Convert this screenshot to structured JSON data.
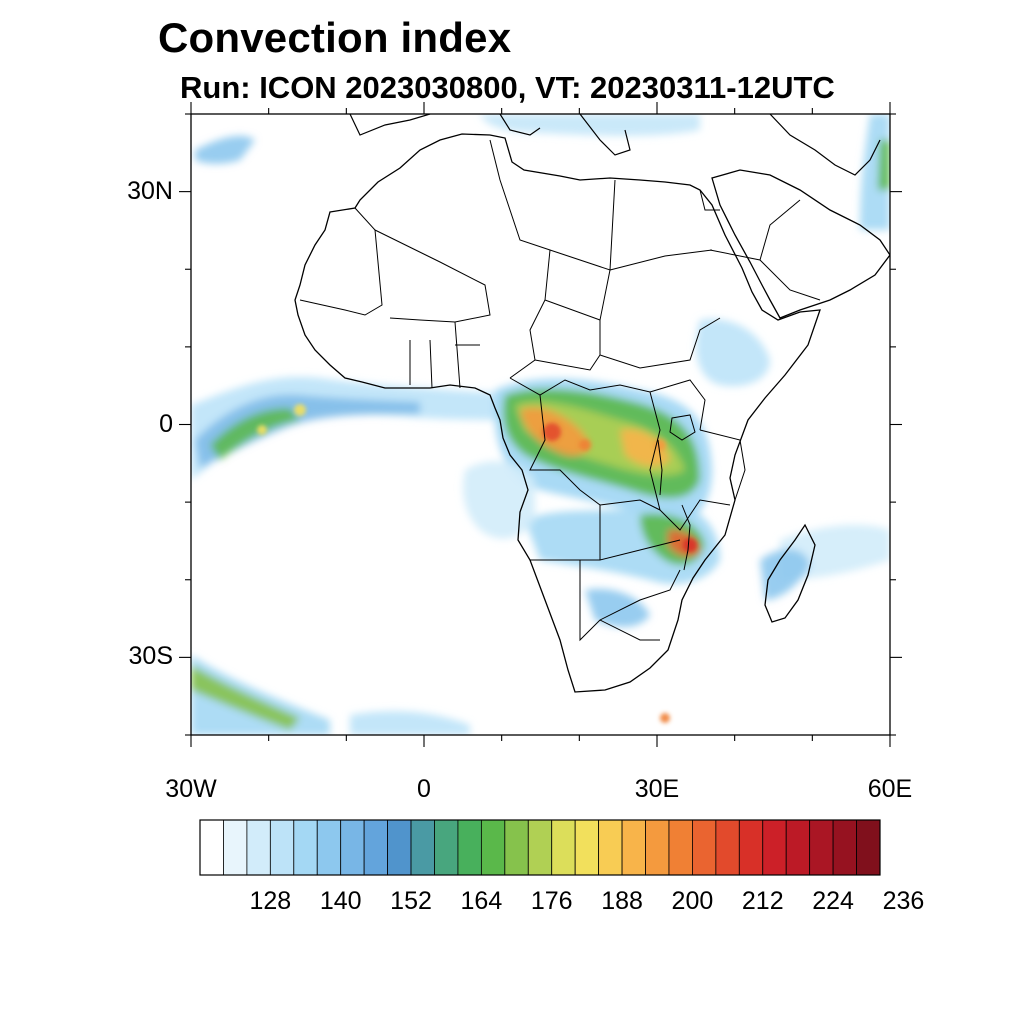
{
  "title": "Convection index",
  "subtitle": "Run: ICON 2023030800,  VT: 20230311-12UTC",
  "map": {
    "extent": {
      "lon_min": -30,
      "lon_max": 60,
      "lat_min": -40,
      "lat_max": 40
    },
    "lat_ticks": [
      {
        "lat": 30,
        "label": "30N"
      },
      {
        "lat": 0,
        "label": "0"
      },
      {
        "lat": -30,
        "label": "30S"
      }
    ],
    "lon_ticks": [
      {
        "lon": -30,
        "label": "30W"
      },
      {
        "lon": 0,
        "label": "0"
      },
      {
        "lon": 30,
        "label": "30E"
      },
      {
        "lon": 60,
        "label": "60E"
      }
    ],
    "minor_lat": [
      -40,
      -20,
      -10,
      10,
      20,
      40
    ],
    "minor_lon": [
      -20,
      -10,
      10,
      20,
      40,
      50
    ]
  },
  "colorbar": {
    "labels": [
      "128",
      "140",
      "152",
      "164",
      "176",
      "188",
      "200",
      "212",
      "224",
      "236"
    ],
    "colors": [
      "#ffffff",
      "#e8f5fc",
      "#d2ecfa",
      "#bde3f8",
      "#a4d8f4",
      "#8dc8ee",
      "#78b6e6",
      "#63a4dc",
      "#5094cc",
      "#4a9aa4",
      "#48a67e",
      "#48b05c",
      "#5ab84a",
      "#86c24c",
      "#b0d054",
      "#dcde5a",
      "#f2e05c",
      "#f8cc54",
      "#f8b44a",
      "#f49a3e",
      "#f08034",
      "#ea6430",
      "#e24a2c",
      "#d83028",
      "#cc2028",
      "#bc1a26",
      "#aa1624",
      "#961220",
      "#80101c"
    ]
  },
  "features": {
    "coastline_color": "#000000",
    "border_color": "#000000"
  }
}
